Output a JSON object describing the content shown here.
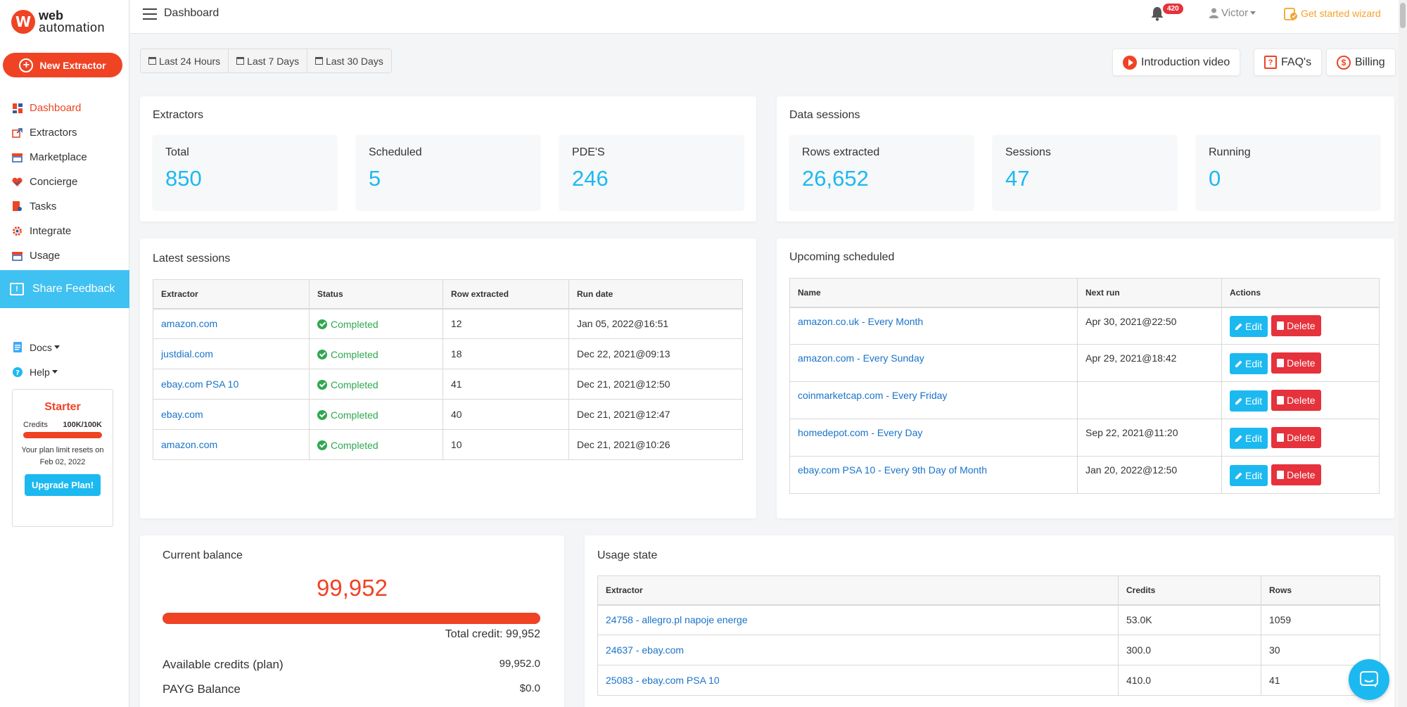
{
  "brand": {
    "line1": "web",
    "line2": "automation",
    "mark": "W"
  },
  "sidebar": {
    "new_extractor": "New Extractor",
    "items": [
      {
        "label": "Dashboard",
        "icon": "dashboard-icon",
        "active": true
      },
      {
        "label": "Extractors",
        "icon": "export-icon"
      },
      {
        "label": "Marketplace",
        "icon": "store-icon"
      },
      {
        "label": "Concierge",
        "icon": "handshake-icon"
      },
      {
        "label": "Tasks",
        "icon": "tasks-icon"
      },
      {
        "label": "Integrate",
        "icon": "cog-icon"
      },
      {
        "label": "Usage",
        "icon": "usage-icon"
      }
    ],
    "share_feedback": "Share Feedback",
    "docs": "Docs",
    "help": "Help",
    "plan": {
      "name": "Starter",
      "credits_label": "Credits",
      "credits_value": "100K/100K",
      "note": "Your plan limit resets on Feb 02, 2022",
      "upgrade": "Upgrade Plan!"
    }
  },
  "topbar": {
    "title": "Dashboard",
    "notification_count": "420",
    "user": "Victor",
    "wizard": "Get started wizard"
  },
  "date_tabs": [
    "Last 24 Hours",
    "Last 7 Days",
    "Last 30 Days"
  ],
  "top_buttons": {
    "intro": "Introduction video",
    "faq": "FAQ's",
    "billing": "Billing"
  },
  "extractors": {
    "title": "Extractors",
    "stats": [
      {
        "label": "Total",
        "value": "850"
      },
      {
        "label": "Scheduled",
        "value": "5"
      },
      {
        "label": "PDE'S",
        "value": "246"
      }
    ]
  },
  "data_sessions": {
    "title": "Data sessions",
    "stats": [
      {
        "label": "Rows extracted",
        "value": "26,652"
      },
      {
        "label": "Sessions",
        "value": "47"
      },
      {
        "label": "Running",
        "value": "0"
      }
    ]
  },
  "latest_sessions": {
    "title": "Latest sessions",
    "columns": [
      "Extractor",
      "Status",
      "Row extracted",
      "Run date"
    ],
    "rows": [
      {
        "extractor": "amazon.com",
        "status": "Completed",
        "rows": "12",
        "date": "Jan 05, 2022@16:51"
      },
      {
        "extractor": "justdial.com",
        "status": "Completed",
        "rows": "18",
        "date": "Dec 22, 2021@09:13"
      },
      {
        "extractor": "ebay.com PSA 10",
        "status": "Completed",
        "rows": "41",
        "date": "Dec 21, 2021@12:50"
      },
      {
        "extractor": "ebay.com",
        "status": "Completed",
        "rows": "40",
        "date": "Dec 21, 2021@12:47"
      },
      {
        "extractor": "amazon.com",
        "status": "Completed",
        "rows": "10",
        "date": "Dec 21, 2021@10:26"
      }
    ]
  },
  "upcoming": {
    "title": "Upcoming scheduled",
    "columns": [
      "Name",
      "Next run",
      "Actions"
    ],
    "edit": "Edit",
    "delete": "Delete",
    "rows": [
      {
        "name": "amazon.co.uk - Every Month",
        "next": "Apr 30, 2021@22:50"
      },
      {
        "name": "amazon.com - Every Sunday",
        "next": "Apr 29, 2021@18:42"
      },
      {
        "name": "coinmarketcap.com - Every Friday",
        "next": ""
      },
      {
        "name": "homedepot.com - Every Day",
        "next": "Sep 22, 2021@11:20"
      },
      {
        "name": "ebay.com PSA 10 - Every 9th Day of Month",
        "next": "Jan 20, 2022@12:50"
      }
    ]
  },
  "balance": {
    "title": "Current balance",
    "value": "99,952",
    "fill_fraction": 0.9995,
    "total_credit": "Total credit: 99,952",
    "available_label": "Available credits (plan)",
    "available_value": "99,952.0",
    "payg_label": "PAYG Balance",
    "payg_value": "$0.0"
  },
  "usage": {
    "title": "Usage state",
    "columns": [
      "Extractor",
      "Credits",
      "Rows"
    ],
    "rows": [
      {
        "extractor": "24758 - allegro.pl napoje energe",
        "credits": "53.0K",
        "rows": "1059"
      },
      {
        "extractor": "24637 - ebay.com",
        "credits": "300.0",
        "rows": "30"
      },
      {
        "extractor": "25083 - ebay.com PSA 10",
        "credits": "410.0",
        "rows": "41"
      }
    ]
  },
  "colors": {
    "brand": "#ef4324",
    "accent": "#1cb9f1",
    "link": "#1a73c9",
    "success": "#2fa84f",
    "danger": "#e5323c"
  }
}
